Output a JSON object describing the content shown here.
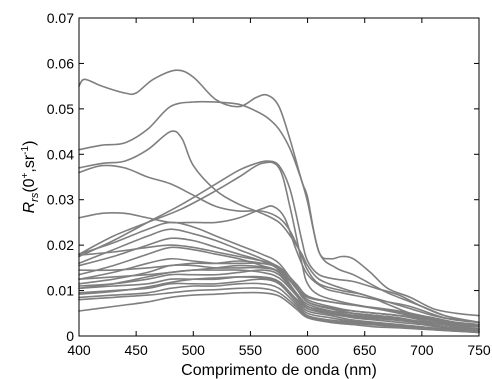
{
  "chart_data": {
    "type": "line",
    "title": "",
    "xlabel": "Comprimento de onda (nm)",
    "ylabel": {
      "main": "R",
      "sub": "rs",
      "rest": "(0",
      "sup1": "+",
      "mid": ",sr",
      "sup2": "-1",
      "end": ")"
    },
    "xlim": [
      400,
      750
    ],
    "ylim": [
      0,
      0.07
    ],
    "xticks": [
      400,
      450,
      500,
      550,
      600,
      650,
      700,
      750
    ],
    "xtick_labels": [
      "400",
      "450",
      "500",
      "550",
      "600",
      "650",
      "700",
      "750"
    ],
    "yticks": [
      0,
      0.01,
      0.02,
      0.03,
      0.04,
      0.05,
      0.06,
      0.07
    ],
    "ytick_labels": [
      "0",
      "0.01",
      "0.02",
      "0.03",
      "0.04",
      "0.05",
      "0.06",
      "0.07"
    ],
    "grid": false,
    "line_color": "#7f7f7f",
    "series": [
      {
        "x": [
          400,
          405,
          420,
          440,
          450,
          465,
          485,
          500,
          520,
          540,
          555,
          565,
          575,
          585,
          595,
          600,
          610,
          625,
          640,
          655,
          670,
          690,
          705,
          720,
          735,
          750
        ],
        "y": [
          0.055,
          0.0565,
          0.055,
          0.0535,
          0.0535,
          0.0565,
          0.0585,
          0.057,
          0.052,
          0.0505,
          0.0525,
          0.053,
          0.0505,
          0.043,
          0.034,
          0.0305,
          0.0185,
          0.015,
          0.0135,
          0.0115,
          0.0095,
          0.0075,
          0.006,
          0.0045,
          0.0035,
          0.003
        ]
      },
      {
        "x": [
          400,
          420,
          440,
          460,
          480,
          500,
          520,
          540,
          555,
          565,
          575,
          585,
          595,
          600,
          610,
          620,
          630,
          640,
          655,
          670,
          690,
          710,
          730,
          750
        ],
        "y": [
          0.041,
          0.042,
          0.0425,
          0.0455,
          0.0505,
          0.0515,
          0.0515,
          0.051,
          0.0495,
          0.048,
          0.0455,
          0.041,
          0.034,
          0.0295,
          0.0185,
          0.017,
          0.0175,
          0.017,
          0.014,
          0.0105,
          0.0085,
          0.006,
          0.005,
          0.0045
        ]
      },
      {
        "x": [
          400,
          420,
          440,
          460,
          480,
          490,
          500,
          520,
          540,
          560,
          575,
          585,
          595,
          600,
          610,
          630,
          650,
          670,
          690,
          710,
          730,
          750
        ],
        "y": [
          0.037,
          0.038,
          0.0385,
          0.041,
          0.045,
          0.0435,
          0.0375,
          0.032,
          0.029,
          0.027,
          0.025,
          0.022,
          0.018,
          0.0155,
          0.0125,
          0.0105,
          0.009,
          0.0075,
          0.006,
          0.0045,
          0.0035,
          0.003
        ]
      },
      {
        "x": [
          400,
          420,
          440,
          460,
          480,
          500,
          520,
          540,
          560,
          575,
          585,
          595,
          600,
          610,
          630,
          650,
          670,
          690,
          710,
          730,
          750
        ],
        "y": [
          0.036,
          0.0375,
          0.037,
          0.035,
          0.0335,
          0.031,
          0.0285,
          0.0275,
          0.0275,
          0.026,
          0.023,
          0.0175,
          0.0145,
          0.0115,
          0.01,
          0.009,
          0.007,
          0.005,
          0.004,
          0.003,
          0.0025
        ]
      },
      {
        "x": [
          400,
          430,
          460,
          490,
          520,
          540,
          555,
          565,
          575,
          585,
          595,
          600,
          610,
          625,
          640,
          660,
          680,
          700,
          720,
          750
        ],
        "y": [
          0.0175,
          0.021,
          0.025,
          0.029,
          0.0335,
          0.0365,
          0.038,
          0.0385,
          0.0375,
          0.032,
          0.021,
          0.0165,
          0.0135,
          0.0125,
          0.012,
          0.0105,
          0.009,
          0.0065,
          0.0045,
          0.003
        ]
      },
      {
        "x": [
          400,
          430,
          460,
          490,
          520,
          540,
          560,
          575,
          585,
          595,
          600,
          610,
          630,
          650,
          670,
          690,
          710,
          730,
          750
        ],
        "y": [
          0.018,
          0.022,
          0.025,
          0.028,
          0.032,
          0.035,
          0.038,
          0.037,
          0.028,
          0.016,
          0.0115,
          0.009,
          0.0075,
          0.0065,
          0.0055,
          0.0045,
          0.0035,
          0.003,
          0.0025
        ]
      },
      {
        "x": [
          400,
          420,
          440,
          460,
          480,
          500,
          520,
          540,
          560,
          570,
          580,
          590,
          600,
          615,
          630,
          650,
          670,
          690,
          720,
          750
        ],
        "y": [
          0.026,
          0.027,
          0.027,
          0.026,
          0.025,
          0.025,
          0.025,
          0.026,
          0.028,
          0.0285,
          0.026,
          0.019,
          0.0135,
          0.0105,
          0.0095,
          0.0085,
          0.0075,
          0.0065,
          0.004,
          0.003
        ]
      },
      {
        "x": [
          400,
          430,
          460,
          480,
          500,
          520,
          540,
          560,
          575,
          590,
          600,
          620,
          640,
          660,
          680,
          700,
          720,
          750
        ],
        "y": [
          0.018,
          0.0205,
          0.0235,
          0.025,
          0.024,
          0.022,
          0.02,
          0.018,
          0.016,
          0.011,
          0.008,
          0.0065,
          0.0055,
          0.005,
          0.0045,
          0.004,
          0.003,
          0.0025
        ]
      },
      {
        "x": [
          400,
          430,
          460,
          480,
          500,
          520,
          540,
          560,
          575,
          590,
          600,
          620,
          640,
          660,
          680,
          700,
          720,
          750
        ],
        "y": [
          0.016,
          0.019,
          0.022,
          0.0235,
          0.0225,
          0.021,
          0.019,
          0.017,
          0.015,
          0.0105,
          0.0075,
          0.006,
          0.0055,
          0.005,
          0.0045,
          0.0035,
          0.0025,
          0.002
        ]
      },
      {
        "x": [
          400,
          430,
          460,
          480,
          500,
          520,
          540,
          560,
          575,
          590,
          600,
          620,
          640,
          660,
          680,
          700,
          720,
          750
        ],
        "y": [
          0.0155,
          0.0175,
          0.02,
          0.0215,
          0.021,
          0.0195,
          0.018,
          0.0165,
          0.0145,
          0.0095,
          0.0065,
          0.0055,
          0.005,
          0.0045,
          0.004,
          0.003,
          0.002,
          0.0015
        ]
      },
      {
        "x": [
          400,
          430,
          460,
          480,
          500,
          520,
          540,
          560,
          575,
          590,
          600,
          620,
          640,
          660,
          680,
          700,
          720,
          750
        ],
        "y": [
          0.0135,
          0.0155,
          0.018,
          0.0195,
          0.019,
          0.018,
          0.017,
          0.0155,
          0.014,
          0.009,
          0.006,
          0.005,
          0.0045,
          0.004,
          0.0035,
          0.003,
          0.002,
          0.0015
        ]
      },
      {
        "x": [
          400,
          430,
          460,
          480,
          500,
          520,
          540,
          560,
          575,
          590,
          600,
          620,
          640,
          660,
          680,
          700,
          720,
          750
        ],
        "y": [
          0.0125,
          0.014,
          0.016,
          0.017,
          0.0165,
          0.016,
          0.016,
          0.016,
          0.015,
          0.0105,
          0.0075,
          0.006,
          0.005,
          0.0045,
          0.004,
          0.003,
          0.002,
          0.0015
        ]
      },
      {
        "x": [
          400,
          430,
          460,
          480,
          500,
          520,
          540,
          560,
          575,
          590,
          600,
          620,
          640,
          660,
          680,
          700,
          720,
          750
        ],
        "y": [
          0.0115,
          0.0125,
          0.014,
          0.0155,
          0.0155,
          0.015,
          0.015,
          0.015,
          0.014,
          0.0095,
          0.007,
          0.0055,
          0.0045,
          0.004,
          0.0035,
          0.0028,
          0.002,
          0.0015
        ]
      },
      {
        "x": [
          400,
          430,
          460,
          480,
          500,
          520,
          540,
          560,
          575,
          590,
          600,
          620,
          640,
          660,
          680,
          700,
          720,
          750
        ],
        "y": [
          0.011,
          0.0115,
          0.0125,
          0.0135,
          0.0135,
          0.0135,
          0.014,
          0.0145,
          0.0135,
          0.009,
          0.0065,
          0.005,
          0.004,
          0.0035,
          0.003,
          0.0025,
          0.0018,
          0.0012
        ]
      },
      {
        "x": [
          400,
          430,
          460,
          480,
          500,
          520,
          540,
          560,
          575,
          590,
          600,
          620,
          640,
          660,
          680,
          700,
          720,
          750
        ],
        "y": [
          0.0105,
          0.011,
          0.0115,
          0.0125,
          0.0125,
          0.0125,
          0.013,
          0.013,
          0.012,
          0.008,
          0.0055,
          0.0045,
          0.0035,
          0.003,
          0.0025,
          0.002,
          0.0015,
          0.001
        ]
      },
      {
        "x": [
          400,
          430,
          460,
          480,
          500,
          520,
          540,
          560,
          575,
          590,
          600,
          620,
          640,
          660,
          680,
          700,
          720,
          750
        ],
        "y": [
          0.0095,
          0.01,
          0.0105,
          0.0115,
          0.0115,
          0.0115,
          0.012,
          0.0125,
          0.0115,
          0.0075,
          0.005,
          0.004,
          0.0032,
          0.0028,
          0.0024,
          0.002,
          0.0015,
          0.001
        ]
      },
      {
        "x": [
          400,
          430,
          460,
          480,
          500,
          520,
          540,
          560,
          575,
          590,
          600,
          620,
          640,
          660,
          680,
          700,
          720,
          750
        ],
        "y": [
          0.0085,
          0.009,
          0.0095,
          0.0105,
          0.011,
          0.011,
          0.0115,
          0.0115,
          0.0105,
          0.007,
          0.0045,
          0.0035,
          0.003,
          0.0026,
          0.0022,
          0.0018,
          0.0014,
          0.001
        ]
      },
      {
        "x": [
          400,
          430,
          460,
          480,
          500,
          520,
          540,
          560,
          575,
          590,
          600,
          620,
          640,
          660,
          680,
          700,
          720,
          750
        ],
        "y": [
          0.008,
          0.0085,
          0.009,
          0.0095,
          0.01,
          0.0102,
          0.0105,
          0.0105,
          0.0095,
          0.0065,
          0.0042,
          0.0032,
          0.0028,
          0.0024,
          0.002,
          0.0016,
          0.0012,
          0.0008
        ]
      },
      {
        "x": [
          400,
          430,
          460,
          480,
          500,
          520,
          540,
          560,
          575,
          590,
          600,
          620,
          640,
          660,
          680,
          700,
          720,
          750
        ],
        "y": [
          0.0055,
          0.0065,
          0.0075,
          0.0085,
          0.009,
          0.0092,
          0.0095,
          0.0095,
          0.0088,
          0.006,
          0.004,
          0.003,
          0.0025,
          0.002,
          0.0018,
          0.0015,
          0.0012,
          0.0008
        ]
      },
      {
        "x": [
          400,
          430,
          460,
          480,
          500,
          520,
          540,
          560,
          575,
          590,
          600,
          620,
          640,
          660,
          680,
          700,
          720,
          750
        ],
        "y": [
          0.0145,
          0.0145,
          0.015,
          0.0155,
          0.016,
          0.016,
          0.0165,
          0.016,
          0.0148,
          0.0105,
          0.0075,
          0.0062,
          0.0055,
          0.005,
          0.0045,
          0.0038,
          0.0028,
          0.002
        ]
      },
      {
        "x": [
          400,
          430,
          460,
          480,
          500,
          520,
          540,
          560,
          575,
          590,
          600,
          620,
          640,
          660,
          680,
          700,
          720,
          750
        ],
        "y": [
          0.0125,
          0.013,
          0.0135,
          0.014,
          0.0145,
          0.015,
          0.0155,
          0.0152,
          0.0142,
          0.0108,
          0.0085,
          0.0075,
          0.0068,
          0.0062,
          0.0055,
          0.0045,
          0.0032,
          0.0022
        ]
      },
      {
        "x": [
          400,
          430,
          460,
          480,
          500,
          520,
          540,
          560,
          575,
          590,
          600,
          620,
          640,
          660,
          680,
          700,
          720,
          750
        ],
        "y": [
          0.0105,
          0.0115,
          0.013,
          0.014,
          0.0145,
          0.0145,
          0.0145,
          0.014,
          0.0128,
          0.009,
          0.0065,
          0.0052,
          0.0046,
          0.0042,
          0.0038,
          0.0032,
          0.0024,
          0.0016
        ]
      },
      {
        "x": [
          400,
          430,
          460,
          480,
          500,
          520,
          540,
          560,
          575,
          590,
          600,
          620,
          640,
          660,
          680,
          700,
          720,
          750
        ],
        "y": [
          0.0092,
          0.0098,
          0.0108,
          0.0118,
          0.0125,
          0.0128,
          0.013,
          0.0128,
          0.0118,
          0.0082,
          0.006,
          0.0048,
          0.0042,
          0.0038,
          0.0034,
          0.0028,
          0.002,
          0.0014
        ]
      },
      {
        "x": [
          400,
          430,
          460,
          480,
          500,
          520,
          540,
          560,
          575,
          590,
          600,
          620,
          640,
          660,
          680,
          700,
          720,
          750
        ],
        "y": [
          0.0178,
          0.0185,
          0.0195,
          0.02,
          0.0195,
          0.0185,
          0.0175,
          0.0165,
          0.0152,
          0.0115,
          0.0088,
          0.0075,
          0.0068,
          0.006,
          0.0052,
          0.0042,
          0.0032,
          0.0024
        ]
      }
    ]
  }
}
